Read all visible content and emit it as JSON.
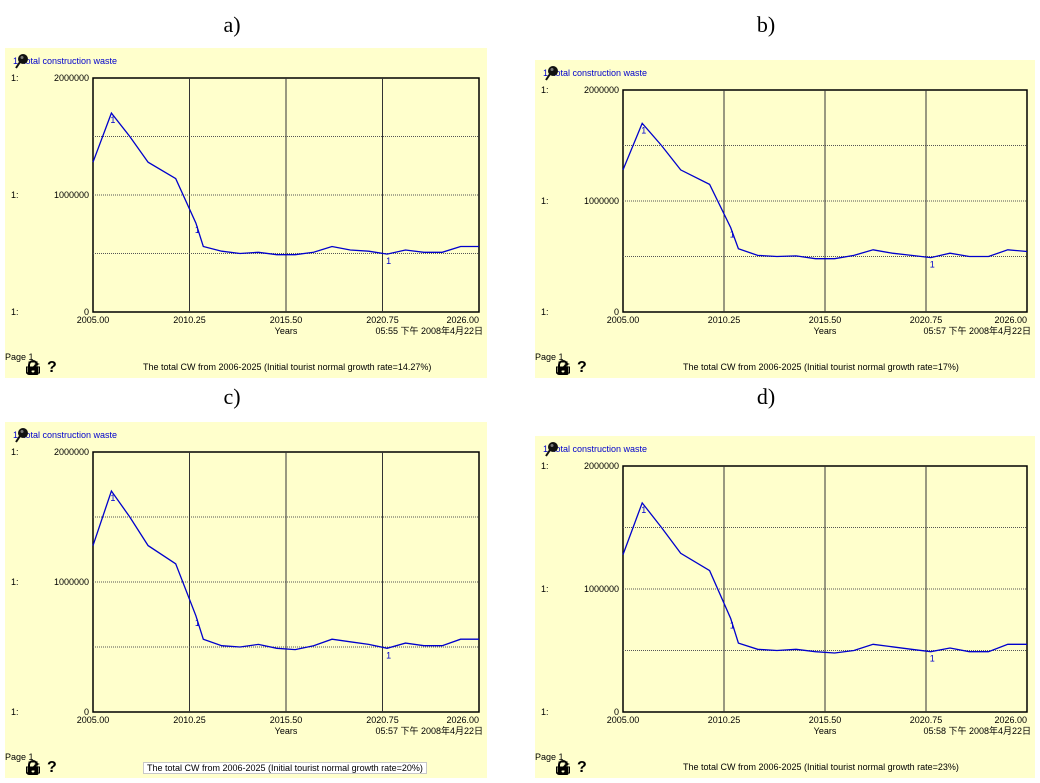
{
  "panel_letters": [
    "a)",
    "b)",
    "c)",
    "d)"
  ],
  "chart_data": [
    {
      "type": "line",
      "panel": "a)",
      "legend": "1: total construction waste",
      "series": [
        {
          "name": "1: total construction waste",
          "color": "#0000cc",
          "x": [
            2005.0,
            2006.0,
            2007.0,
            2008.0,
            2009.5,
            2010.6,
            2011.0,
            2012.0,
            2013.0,
            2014.0,
            2015.0,
            2016.0,
            2017.0,
            2018.0,
            2019.0,
            2020.0,
            2021.0,
            2022.0,
            2023.0,
            2024.0,
            2025.0,
            2026.0
          ],
          "values": [
            1280000,
            1700000,
            1500000,
            1280000,
            1140000,
            760000,
            560000,
            520000,
            500000,
            510000,
            490000,
            490000,
            510000,
            560000,
            530000,
            520000,
            495000,
            530000,
            510000,
            510000,
            560000,
            560000
          ]
        }
      ],
      "xlabel": "Years",
      "x_ticks": [
        "2005.00",
        "2010.25",
        "2015.50",
        "2020.75",
        "2026.00"
      ],
      "xlim": [
        2005.0,
        2026.0
      ],
      "y_ticks": [
        "0",
        "1000000",
        "2000000"
      ],
      "ylim": [
        0,
        2000000
      ],
      "axis_prefix": "1:",
      "grid": true,
      "page": "Page 1",
      "timestamp": "05:55 下午   2008年4月22日",
      "caption": "The total CW from 2006-2025 (Initial tourist normal growth rate=14.27%)"
    },
    {
      "type": "line",
      "panel": "b)",
      "legend": "1: total construction waste",
      "series": [
        {
          "name": "1: total construction waste",
          "color": "#0000cc",
          "x": [
            2005.0,
            2006.0,
            2007.0,
            2008.0,
            2009.5,
            2010.6,
            2011.0,
            2012.0,
            2013.0,
            2014.0,
            2015.0,
            2016.0,
            2017.0,
            2018.0,
            2019.0,
            2020.0,
            2021.0,
            2022.0,
            2023.0,
            2024.0,
            2025.0,
            2026.0
          ],
          "values": [
            1280000,
            1700000,
            1500000,
            1280000,
            1150000,
            760000,
            570000,
            510000,
            500000,
            505000,
            480000,
            480000,
            510000,
            560000,
            530000,
            510000,
            490000,
            530000,
            500000,
            500000,
            560000,
            545000
          ]
        }
      ],
      "xlabel": "Years",
      "x_ticks": [
        "2005.00",
        "2010.25",
        "2015.50",
        "2020.75",
        "2026.00"
      ],
      "xlim": [
        2005.0,
        2026.0
      ],
      "y_ticks": [
        "0",
        "1000000",
        "2000000"
      ],
      "ylim": [
        0,
        2000000
      ],
      "axis_prefix": "1:",
      "grid": true,
      "page": "Page 1",
      "timestamp": "05:57 下午   2008年4月22日",
      "caption": "The total CW from 2006-2025 (Initial tourist normal growth rate=17%)"
    },
    {
      "type": "line",
      "panel": "c)",
      "legend": "1: total construction waste",
      "series": [
        {
          "name": "1: total construction waste",
          "color": "#0000cc",
          "x": [
            2005.0,
            2006.0,
            2007.0,
            2008.0,
            2009.5,
            2010.6,
            2011.0,
            2012.0,
            2013.0,
            2014.0,
            2015.0,
            2016.0,
            2017.0,
            2018.0,
            2019.0,
            2020.0,
            2021.0,
            2022.0,
            2023.0,
            2024.0,
            2025.0,
            2026.0
          ],
          "values": [
            1280000,
            1700000,
            1500000,
            1280000,
            1140000,
            740000,
            560000,
            510000,
            500000,
            520000,
            490000,
            480000,
            510000,
            560000,
            540000,
            520000,
            490000,
            530000,
            510000,
            510000,
            560000,
            560000
          ]
        }
      ],
      "xlabel": "Years",
      "x_ticks": [
        "2005.00",
        "2010.25",
        "2015.50",
        "2020.75",
        "2026.00"
      ],
      "xlim": [
        2005.0,
        2026.0
      ],
      "y_ticks": [
        "0",
        "1000000",
        "2000000"
      ],
      "ylim": [
        0,
        2000000
      ],
      "axis_prefix": "1:",
      "grid": true,
      "page": "Page 1",
      "timestamp": "05:57 下午   2008年4月22日",
      "caption": "The total CW from 2006-2025 (Initial tourist normal growth rate=20%)"
    },
    {
      "type": "line",
      "panel": "d)",
      "legend": "1: total construction waste",
      "series": [
        {
          "name": "1: total construction waste",
          "color": "#0000cc",
          "x": [
            2005.0,
            2006.0,
            2007.0,
            2008.0,
            2009.5,
            2010.6,
            2011.0,
            2012.0,
            2013.0,
            2014.0,
            2015.0,
            2016.0,
            2017.0,
            2018.0,
            2019.0,
            2020.0,
            2021.0,
            2022.0,
            2023.0,
            2024.0,
            2025.0,
            2026.0
          ],
          "values": [
            1280000,
            1700000,
            1500000,
            1290000,
            1150000,
            760000,
            560000,
            510000,
            500000,
            510000,
            490000,
            480000,
            500000,
            550000,
            530000,
            510000,
            490000,
            520000,
            490000,
            490000,
            550000,
            550000
          ]
        }
      ],
      "xlabel": "Years",
      "x_ticks": [
        "2005.00",
        "2010.25",
        "2015.50",
        "2020.75",
        "2026.00"
      ],
      "xlim": [
        2005.0,
        2026.0
      ],
      "y_ticks": [
        "0",
        "1000000",
        "2000000"
      ],
      "ylim": [
        0,
        2000000
      ],
      "axis_prefix": "1:",
      "grid": true,
      "page": "Page 1",
      "timestamp": "05:58 下午   2008年4月22日",
      "caption": "The total CW from 2006-2025 (Initial tourist normal growth rate=23%)"
    }
  ],
  "icons": [
    "pin-icon",
    "lock-icon",
    "print-icon",
    "magic-wand-icon",
    "help-icon"
  ]
}
